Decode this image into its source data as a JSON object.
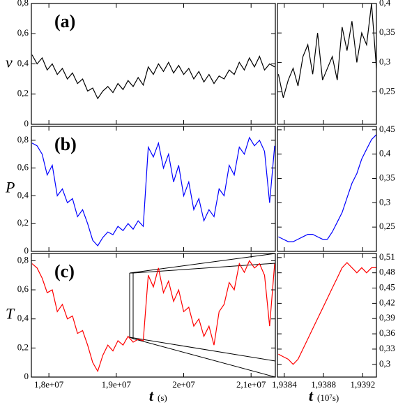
{
  "chart_data": [
    {
      "type": "line",
      "panel_label": "(a)",
      "y_label": "v",
      "x": [
        17750000,
        17825000,
        17900000,
        17975000,
        18050000,
        18125000,
        18200000,
        18275000,
        18350000,
        18425000,
        18500000,
        18575000,
        18650000,
        18725000,
        18800000,
        18875000,
        18950000,
        19025000,
        19100000,
        19175000,
        19250000,
        19325000,
        19400000,
        19475000,
        19550000,
        19625000,
        19700000,
        19775000,
        19850000,
        19925000,
        20000000,
        20075000,
        20150000,
        20225000,
        20300000,
        20375000,
        20450000,
        20525000,
        20600000,
        20675000,
        20750000,
        20825000,
        20900000,
        20975000,
        21050000,
        21125000,
        21200000,
        21275000,
        21350000
      ],
      "series": [
        {
          "color": "#000000",
          "values": [
            0.46,
            0.4,
            0.44,
            0.36,
            0.4,
            0.33,
            0.37,
            0.3,
            0.34,
            0.27,
            0.3,
            0.22,
            0.24,
            0.17,
            0.22,
            0.25,
            0.21,
            0.27,
            0.23,
            0.29,
            0.25,
            0.31,
            0.26,
            0.38,
            0.33,
            0.4,
            0.35,
            0.41,
            0.34,
            0.39,
            0.33,
            0.37,
            0.3,
            0.35,
            0.28,
            0.33,
            0.27,
            0.32,
            0.3,
            0.36,
            0.33,
            0.41,
            0.36,
            0.44,
            0.38,
            0.45,
            0.36,
            0.4,
            0.38
          ]
        }
      ],
      "xlim": [
        17740000,
        21360000
      ],
      "ylim": [
        0,
        0.8
      ],
      "yticks": [
        0,
        {
          "value": 0.2,
          "label": "0,2"
        },
        {
          "value": 0.4,
          "label": "0,4"
        },
        {
          "value": 0.6,
          "label": "0,6"
        },
        {
          "value": 0.8,
          "label": "0,8"
        }
      ]
    },
    {
      "type": "line",
      "x": [
        1.93834,
        1.93839,
        1.93844,
        1.93849,
        1.93854,
        1.93859,
        1.93864,
        1.93869,
        1.93874,
        1.93879,
        1.93884,
        1.93889,
        1.93894,
        1.93899,
        1.93904,
        1.93909,
        1.93914,
        1.93919,
        1.93924,
        1.93929,
        1.93934
      ],
      "series": [
        {
          "color": "#000000",
          "values": [
            0.28,
            0.24,
            0.27,
            0.29,
            0.26,
            0.31,
            0.33,
            0.28,
            0.35,
            0.27,
            0.29,
            0.31,
            0.27,
            0.36,
            0.32,
            0.37,
            0.3,
            0.35,
            0.33,
            0.4,
            0.29
          ]
        }
      ],
      "xlim": [
        1.93833,
        1.93934
      ],
      "ylim": [
        0.195,
        0.4
      ],
      "yticks": [
        {
          "value": 0.25,
          "label": "0,25"
        },
        {
          "value": 0.3,
          "label": "0,3"
        },
        {
          "value": 0.35,
          "label": "0,35"
        },
        {
          "value": 0.4,
          "label": "0,4"
        }
      ]
    },
    {
      "type": "line",
      "panel_label": "(b)",
      "y_label": "P",
      "x": [
        17750000,
        17825000,
        17900000,
        17975000,
        18050000,
        18125000,
        18200000,
        18275000,
        18350000,
        18425000,
        18500000,
        18575000,
        18650000,
        18725000,
        18800000,
        18875000,
        18950000,
        19025000,
        19100000,
        19175000,
        19250000,
        19325000,
        19400000,
        19475000,
        19550000,
        19625000,
        19700000,
        19775000,
        19850000,
        19925000,
        20000000,
        20075000,
        20150000,
        20225000,
        20300000,
        20375000,
        20450000,
        20525000,
        20600000,
        20675000,
        20750000,
        20825000,
        20900000,
        20975000,
        21050000,
        21125000,
        21200000,
        21275000,
        21350000
      ],
      "series": [
        {
          "color": "#0000ff",
          "values": [
            0.78,
            0.76,
            0.7,
            0.55,
            0.62,
            0.4,
            0.45,
            0.35,
            0.38,
            0.25,
            0.3,
            0.2,
            0.08,
            0.04,
            0.1,
            0.14,
            0.12,
            0.18,
            0.15,
            0.2,
            0.16,
            0.22,
            0.18,
            0.75,
            0.68,
            0.78,
            0.6,
            0.7,
            0.5,
            0.62,
            0.4,
            0.5,
            0.3,
            0.38,
            0.22,
            0.3,
            0.25,
            0.45,
            0.4,
            0.62,
            0.55,
            0.75,
            0.7,
            0.82,
            0.76,
            0.8,
            0.72,
            0.35,
            0.76
          ]
        }
      ],
      "xlim": [
        17740000,
        21360000
      ],
      "ylim": [
        0,
        0.9
      ],
      "yticks": [
        0,
        {
          "value": 0.2,
          "label": "0,2"
        },
        {
          "value": 0.4,
          "label": "0,4"
        },
        {
          "value": 0.6,
          "label": "0,6"
        },
        {
          "value": 0.8,
          "label": "0,8"
        }
      ]
    },
    {
      "type": "line",
      "x": [
        1.93834,
        1.93839,
        1.93844,
        1.93849,
        1.93854,
        1.93859,
        1.93864,
        1.93869,
        1.93874,
        1.93879,
        1.93884,
        1.93889,
        1.93894,
        1.93899,
        1.93904,
        1.93909,
        1.93914,
        1.93919,
        1.93924,
        1.93929,
        1.93934
      ],
      "series": [
        {
          "color": "#0000ff",
          "values": [
            0.23,
            0.225,
            0.22,
            0.22,
            0.225,
            0.23,
            0.235,
            0.235,
            0.23,
            0.225,
            0.225,
            0.24,
            0.26,
            0.28,
            0.31,
            0.34,
            0.36,
            0.39,
            0.41,
            0.43,
            0.44
          ]
        }
      ],
      "xlim": [
        1.93833,
        1.93934
      ],
      "ylim": [
        0.2,
        0.457
      ],
      "yticks": [
        {
          "value": 0.25,
          "label": "0,25"
        },
        {
          "value": 0.3,
          "label": "0,3"
        },
        {
          "value": 0.35,
          "label": "0,35"
        },
        {
          "value": 0.4,
          "label": "0,4"
        },
        {
          "value": 0.45,
          "label": "0,45"
        }
      ]
    },
    {
      "type": "line",
      "panel_label": "(c)",
      "y_label": "T",
      "x_label": "t",
      "x_unit": "(s)",
      "x": [
        17750000,
        17825000,
        17900000,
        17975000,
        18050000,
        18125000,
        18200000,
        18275000,
        18350000,
        18425000,
        18500000,
        18575000,
        18650000,
        18725000,
        18800000,
        18875000,
        18950000,
        19025000,
        19100000,
        19175000,
        19250000,
        19325000,
        19400000,
        19475000,
        19550000,
        19625000,
        19700000,
        19775000,
        19850000,
        19925000,
        20000000,
        20075000,
        20150000,
        20225000,
        20300000,
        20375000,
        20450000,
        20525000,
        20600000,
        20675000,
        20750000,
        20825000,
        20900000,
        20975000,
        21050000,
        21125000,
        21200000,
        21275000,
        21350000
      ],
      "series": [
        {
          "color": "#ff0000",
          "values": [
            0.78,
            0.75,
            0.68,
            0.58,
            0.6,
            0.45,
            0.5,
            0.4,
            0.42,
            0.3,
            0.32,
            0.22,
            0.1,
            0.04,
            0.15,
            0.22,
            0.18,
            0.25,
            0.22,
            0.28,
            0.24,
            0.26,
            0.25,
            0.7,
            0.62,
            0.75,
            0.58,
            0.66,
            0.52,
            0.6,
            0.45,
            0.48,
            0.35,
            0.4,
            0.28,
            0.35,
            0.22,
            0.45,
            0.5,
            0.65,
            0.6,
            0.78,
            0.72,
            0.8,
            0.75,
            0.78,
            0.7,
            0.35,
            0.78
          ]
        }
      ],
      "xlim": [
        17740000,
        21360000
      ],
      "ylim": [
        0,
        0.85
      ],
      "xticks": [
        {
          "value": 18000000,
          "label": "1,8e+07"
        },
        {
          "value": 19000000,
          "label": "1,9e+07"
        },
        {
          "value": 20000000,
          "label": "2e+07"
        },
        {
          "value": 21000000,
          "label": "2,1e+07"
        }
      ],
      "yticks": [
        0,
        {
          "value": 0.2,
          "label": "0,2"
        },
        {
          "value": 0.4,
          "label": "0,4"
        },
        {
          "value": 0.6,
          "label": "0,6"
        },
        {
          "value": 0.8,
          "label": "0,8"
        }
      ]
    },
    {
      "type": "line",
      "x_label": "t",
      "x_unit": "(10⁷s)",
      "x": [
        1.93834,
        1.93839,
        1.93844,
        1.93849,
        1.93854,
        1.93859,
        1.93864,
        1.93869,
        1.93874,
        1.93879,
        1.93884,
        1.93889,
        1.93894,
        1.93899,
        1.93904,
        1.93909,
        1.93914,
        1.93919,
        1.93924,
        1.93929,
        1.93934
      ],
      "series": [
        {
          "color": "#ff0000",
          "values": [
            0.32,
            0.315,
            0.31,
            0.3,
            0.31,
            0.33,
            0.35,
            0.37,
            0.39,
            0.41,
            0.43,
            0.45,
            0.47,
            0.49,
            0.5,
            0.49,
            0.48,
            0.49,
            0.48,
            0.49,
            0.49
          ]
        }
      ],
      "xlim": [
        1.93833,
        1.93934
      ],
      "ylim": [
        0.275,
        0.518
      ],
      "xticks": [
        {
          "value": 1.9384,
          "label": "1,9384"
        },
        {
          "value": 1.9388,
          "label": "1,9388"
        },
        {
          "value": 1.9392,
          "label": "1,9392"
        }
      ],
      "yticks": [
        {
          "value": 0.3,
          "label": "0,3"
        },
        {
          "value": 0.33,
          "label": "0,33"
        },
        {
          "value": 0.36,
          "label": "0,36"
        },
        {
          "value": 0.39,
          "label": "0,39"
        },
        {
          "value": 0.42,
          "label": "0,42"
        },
        {
          "value": 0.45,
          "label": "0,45"
        },
        {
          "value": 0.48,
          "label": "0,48"
        },
        {
          "value": 0.51,
          "label": "0,51"
        }
      ]
    }
  ]
}
